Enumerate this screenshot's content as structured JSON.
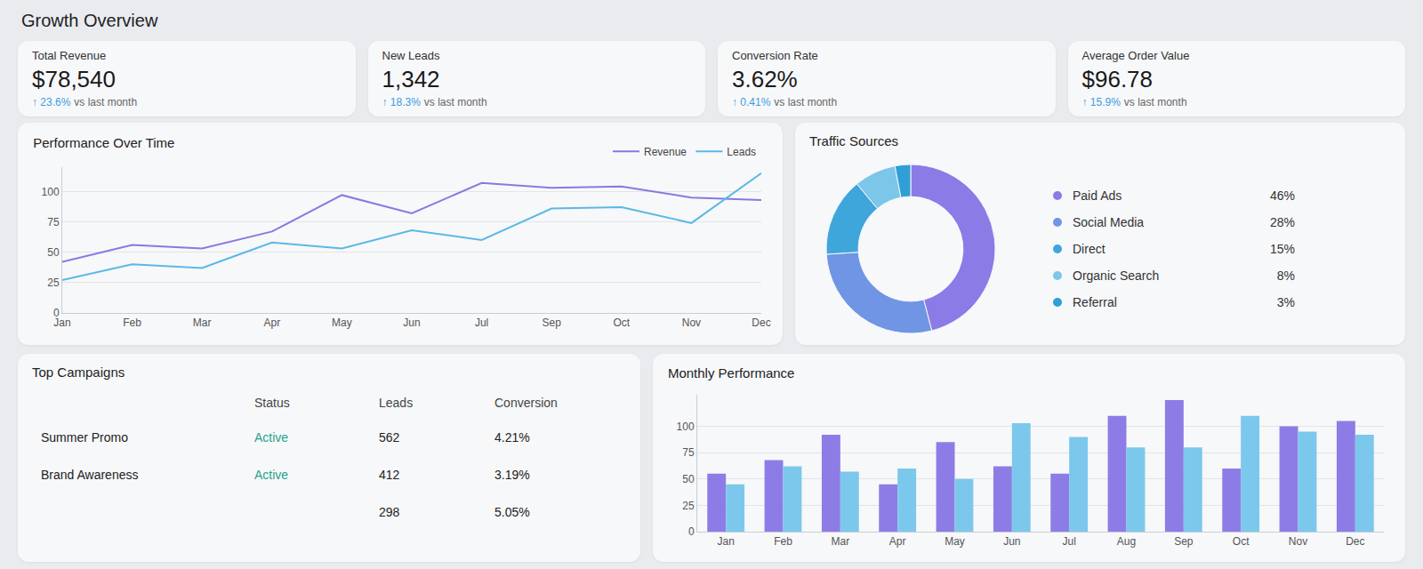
{
  "title": "Growth Overview",
  "kpis": [
    {
      "label": "Total Revenue",
      "value": "$78,540",
      "change": "↑ 23.6%",
      "comparison": "vs last month"
    },
    {
      "label": "New Leads",
      "value": "1,342",
      "change": "↑ 18.3%",
      "comparison": "vs last month"
    },
    {
      "label": "Conversion Rate",
      "value": "3.62%",
      "change": "↑ 0.41%",
      "comparison": "vs last month"
    },
    {
      "label": "Average Order Value",
      "value": "$96.78",
      "change": "↑ 15.9%",
      "comparison": "vs last month"
    }
  ],
  "chart_data": [
    {
      "type": "line",
      "title": "Performance Over Time",
      "categories": [
        "Jan",
        "Feb",
        "Mar",
        "Apr",
        "May",
        "Jun",
        "Jul",
        "Sep",
        "Oct",
        "Nov",
        "Dec"
      ],
      "series": [
        {
          "name": "Revenue",
          "color": "#8a78e0",
          "values": [
            42,
            56,
            53,
            67,
            97,
            82,
            107,
            103,
            104,
            95,
            93
          ]
        },
        {
          "name": "Leads",
          "color": "#5bb8e6",
          "values": [
            27,
            40,
            37,
            58,
            53,
            68,
            60,
            86,
            87,
            74,
            115
          ]
        }
      ],
      "ylim": [
        0,
        120
      ],
      "yticks": [
        0,
        25,
        50,
        75,
        100
      ],
      "grid": true,
      "legend": "top right"
    },
    {
      "type": "pie",
      "title": "Traffic Sources",
      "categories": [
        "Paid Ads",
        "Social Media",
        "Direct",
        "Organic Search",
        "Referral"
      ],
      "values": [
        46,
        28,
        15,
        8,
        3
      ],
      "value_labels": [
        "46%",
        "28%",
        "15%",
        "8%",
        "3%"
      ],
      "colors": [
        "#8b7be6",
        "#6f95e4",
        "#3ea6db",
        "#7cc6ea",
        "#2f9fd6"
      ],
      "legend": "right"
    },
    {
      "type": "bar",
      "title": "Monthly Performance",
      "categories": [
        "Jan",
        "Feb",
        "Mar",
        "Apr",
        "May",
        "Jun",
        "Jul",
        "Aug",
        "Sep",
        "Oct",
        "Nov",
        "Dec"
      ],
      "series": [
        {
          "color": "#8e7ce6",
          "values": [
            55,
            68,
            92,
            45,
            85,
            62,
            55,
            110,
            125,
            60,
            100,
            105
          ]
        },
        {
          "color": "#7cc8ec",
          "values": [
            45,
            62,
            57,
            60,
            50,
            103,
            90,
            80,
            80,
            110,
            95,
            92
          ]
        }
      ],
      "ylim": [
        0,
        130
      ],
      "yticks": [
        0,
        25,
        50,
        75,
        100
      ],
      "grid": true
    }
  ],
  "table": {
    "title": "Top Campaigns",
    "columns": [
      null,
      "Status",
      "Leads",
      "Conversion"
    ],
    "rows": [
      [
        "Summer Promo",
        "Active",
        562,
        "4.21%"
      ],
      [
        "Brand Awareness",
        "Active",
        412,
        "3.19%"
      ],
      [
        null,
        null,
        298,
        "5.05%"
      ]
    ]
  }
}
